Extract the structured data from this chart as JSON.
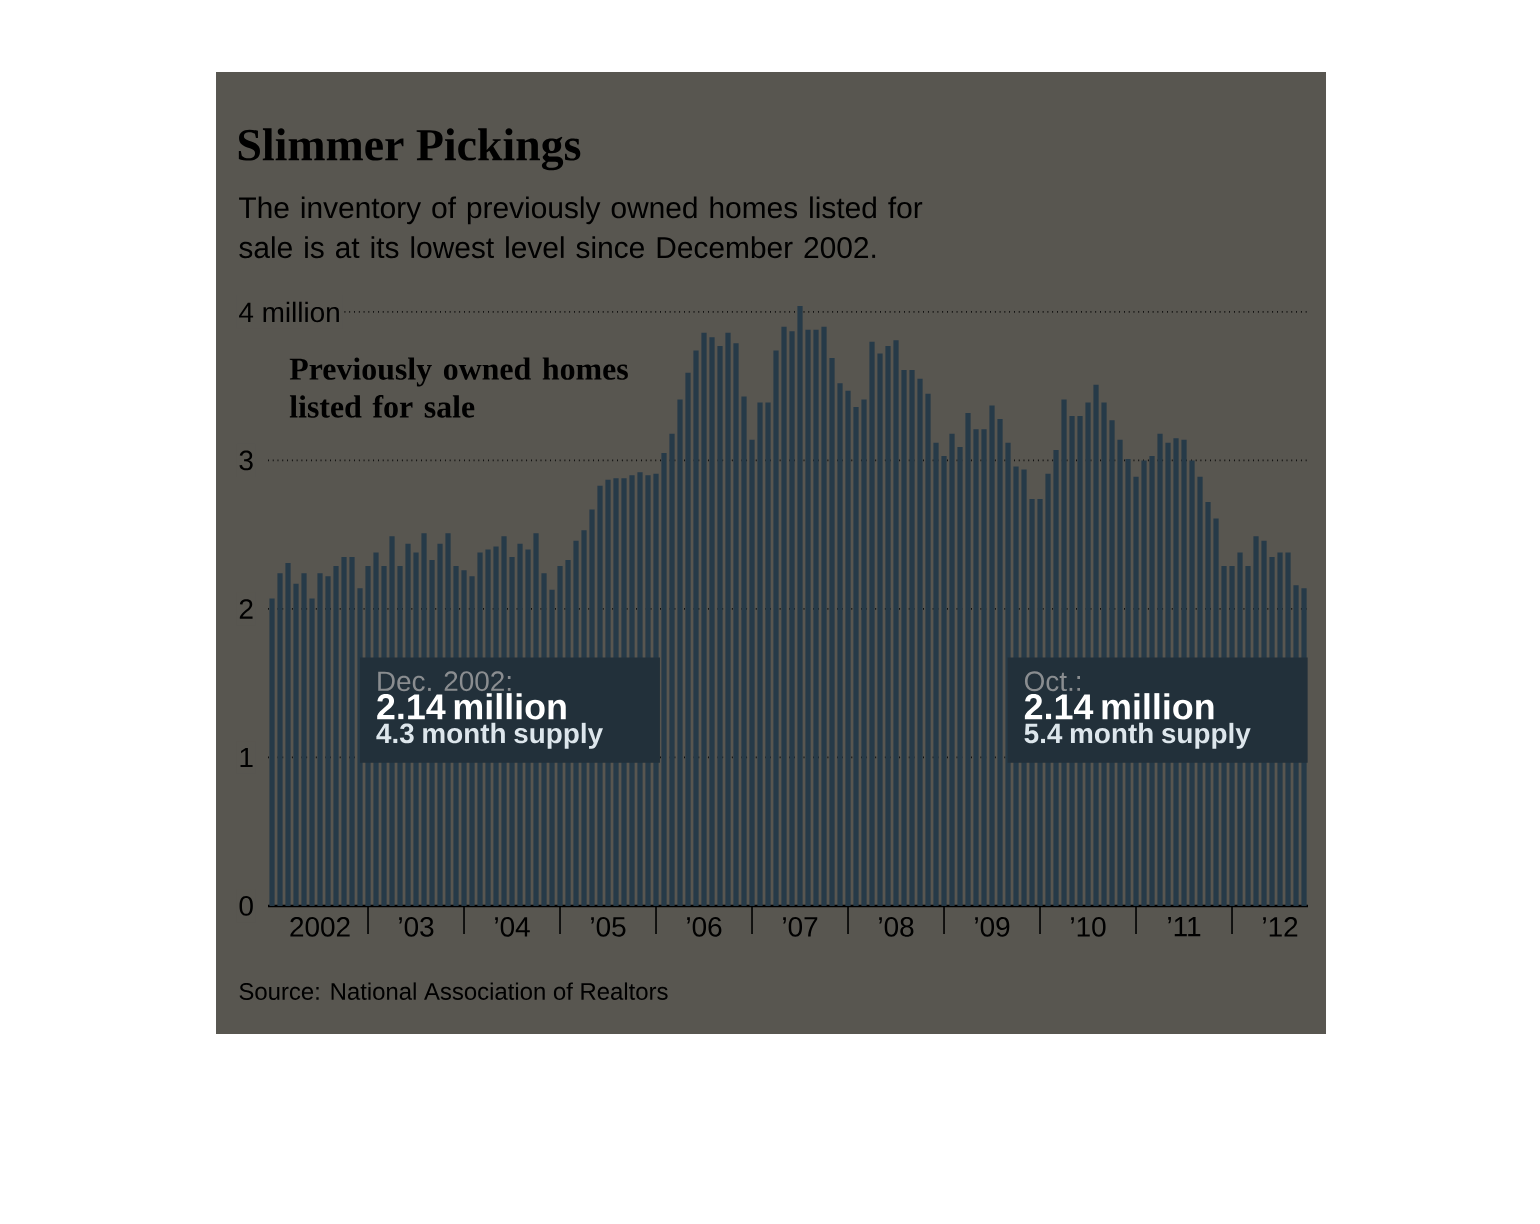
{
  "chart_data": {
    "type": "bar",
    "title": "Slimmer Pickings",
    "subtitle": "The inventory of previously owned homes listed for sale is at its lowest level since December 2002.",
    "x": [
      "2002-01",
      "2002-02",
      "2002-03",
      "2002-04",
      "2002-05",
      "2002-06",
      "2002-07",
      "2002-08",
      "2002-09",
      "2002-10",
      "2002-11",
      "2002-12",
      "2003-01",
      "2003-02",
      "2003-03",
      "2003-04",
      "2003-05",
      "2003-06",
      "2003-07",
      "2003-08",
      "2003-09",
      "2003-10",
      "2003-11",
      "2003-12",
      "2004-01",
      "2004-02",
      "2004-03",
      "2004-04",
      "2004-05",
      "2004-06",
      "2004-07",
      "2004-08",
      "2004-09",
      "2004-10",
      "2004-11",
      "2004-12",
      "2005-01",
      "2005-02",
      "2005-03",
      "2005-04",
      "2005-05",
      "2005-06",
      "2005-07",
      "2005-08",
      "2005-09",
      "2005-10",
      "2005-11",
      "2005-12",
      "2006-01",
      "2006-02",
      "2006-03",
      "2006-04",
      "2006-05",
      "2006-06",
      "2006-07",
      "2006-08",
      "2006-09",
      "2006-10",
      "2006-11",
      "2006-12",
      "2007-01",
      "2007-02",
      "2007-03",
      "2007-04",
      "2007-05",
      "2007-06",
      "2007-07",
      "2007-08",
      "2007-09",
      "2007-10",
      "2007-11",
      "2007-12",
      "2008-01",
      "2008-02",
      "2008-03",
      "2008-04",
      "2008-05",
      "2008-06",
      "2008-07",
      "2008-08",
      "2008-09",
      "2008-10",
      "2008-11",
      "2008-12",
      "2009-01",
      "2009-02",
      "2009-03",
      "2009-04",
      "2009-05",
      "2009-06",
      "2009-07",
      "2009-08",
      "2009-09",
      "2009-10",
      "2009-11",
      "2009-12",
      "2010-01",
      "2010-02",
      "2010-03",
      "2010-04",
      "2010-05",
      "2010-06",
      "2010-07",
      "2010-08",
      "2010-09",
      "2010-10",
      "2010-11",
      "2010-12",
      "2011-01",
      "2011-02",
      "2011-03",
      "2011-04",
      "2011-05",
      "2011-06",
      "2011-07",
      "2011-08",
      "2011-09",
      "2011-10",
      "2011-11",
      "2011-12",
      "2012-01",
      "2012-02",
      "2012-03",
      "2012-04",
      "2012-05",
      "2012-06",
      "2012-07",
      "2012-08",
      "2012-09",
      "2012-10"
    ],
    "series": [
      {
        "name": "Previously owned homes listed for sale",
        "color": "#263a48",
        "values": [
          2.07,
          2.24,
          2.31,
          2.17,
          2.24,
          2.07,
          2.24,
          2.22,
          2.29,
          2.35,
          2.35,
          2.14,
          2.29,
          2.38,
          2.29,
          2.49,
          2.29,
          2.44,
          2.38,
          2.51,
          2.33,
          2.44,
          2.51,
          2.29,
          2.26,
          2.22,
          2.38,
          2.4,
          2.42,
          2.49,
          2.35,
          2.44,
          2.4,
          2.51,
          2.24,
          2.13,
          2.29,
          2.33,
          2.46,
          2.53,
          2.67,
          2.83,
          2.87,
          2.88,
          2.88,
          2.9,
          2.92,
          2.9,
          2.91,
          3.05,
          3.18,
          3.41,
          3.59,
          3.74,
          3.86,
          3.83,
          3.77,
          3.86,
          3.79,
          3.43,
          3.14,
          3.39,
          3.39,
          3.74,
          3.9,
          3.87,
          4.04,
          3.88,
          3.88,
          3.9,
          3.69,
          3.52,
          3.47,
          3.36,
          3.41,
          3.8,
          3.72,
          3.77,
          3.81,
          3.61,
          3.61,
          3.55,
          3.45,
          3.12,
          3.03,
          3.18,
          3.09,
          3.32,
          3.21,
          3.21,
          3.37,
          3.28,
          3.12,
          2.96,
          2.94,
          2.74,
          2.74,
          2.91,
          3.07,
          3.41,
          3.3,
          3.3,
          3.39,
          3.51,
          3.39,
          3.27,
          3.14,
          3.01,
          2.89,
          3.0,
          3.03,
          3.18,
          3.12,
          3.15,
          3.14,
          3.0,
          2.89,
          2.72,
          2.61,
          2.29,
          2.29,
          2.38,
          2.29,
          2.49,
          2.46,
          2.35,
          2.38,
          2.38,
          2.16,
          2.14
        ]
      }
    ],
    "xlim": [
      "2002-01",
      "2012-10"
    ],
    "xticks": [
      {
        "value": "2002-07",
        "label": "2002"
      },
      {
        "value": "2003-07",
        "label": "’03"
      },
      {
        "value": "2004-07",
        "label": "’04"
      },
      {
        "value": "2005-07",
        "label": "’05"
      },
      {
        "value": "2006-07",
        "label": "’06"
      },
      {
        "value": "2007-07",
        "label": "’07"
      },
      {
        "value": "2008-07",
        "label": "’08"
      },
      {
        "value": "2009-07",
        "label": "’09"
      },
      {
        "value": "2010-07",
        "label": "’10"
      },
      {
        "value": "2011-07",
        "label": "’11"
      },
      {
        "value": "2012-07",
        "label": "’12"
      },
      {
        "value": "2003-01",
        "label": null
      },
      {
        "value": "2004-01",
        "label": null
      },
      {
        "value": "2005-01",
        "label": null
      },
      {
        "value": "2006-01",
        "label": null
      },
      {
        "value": "2007-01",
        "label": null
      },
      {
        "value": "2008-01",
        "label": null
      },
      {
        "value": "2009-01",
        "label": null
      },
      {
        "value": "2010-01",
        "label": null
      },
      {
        "value": "2011-01",
        "label": null
      },
      {
        "value": "2012-01",
        "label": null
      }
    ],
    "ylim": [
      0,
      4.04
    ],
    "yticks": [
      0,
      1,
      2,
      3,
      {
        "value": 4,
        "label": "4 million"
      }
    ],
    "grid": "y",
    "annotations": [
      "Source: National Association of Realtors",
      "Dec. 2002:",
      "2.14 million",
      "4.3 month supply",
      "Oct.:",
      "2.14 million",
      "5.4 month supply"
    ]
  }
}
